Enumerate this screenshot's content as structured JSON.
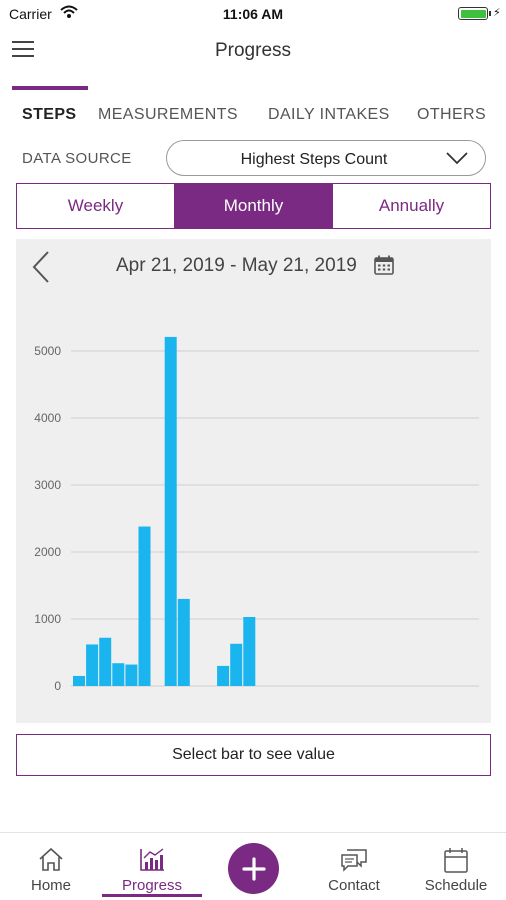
{
  "status_bar": {
    "carrier": "Carrier",
    "time": "11:06 AM"
  },
  "nav": {
    "title": "Progress"
  },
  "tabs": [
    {
      "label": "STEPS",
      "active": true
    },
    {
      "label": "MEASUREMENTS",
      "active": false
    },
    {
      "label": "DAILY INTAKES",
      "active": false
    },
    {
      "label": "OTHERS",
      "active": false
    }
  ],
  "data_source": {
    "label": "DATA SOURCE",
    "value": "Highest Steps Count"
  },
  "periods": [
    {
      "label": "Weekly",
      "active": false
    },
    {
      "label": "Monthly",
      "active": true
    },
    {
      "label": "Annually",
      "active": false
    }
  ],
  "chart_header": {
    "date_range": "Apr 21, 2019 - May 21, 2019"
  },
  "chart_data": {
    "type": "bar",
    "ylim": [
      0,
      5000
    ],
    "yticks": [
      0,
      1000,
      2000,
      3000,
      4000,
      5000
    ],
    "grid": true,
    "values": [
      150,
      620,
      720,
      340,
      320,
      2380,
      0,
      5210,
      1300,
      0,
      0,
      300,
      630,
      1030,
      0,
      0,
      0,
      0,
      0,
      0,
      0,
      0,
      0,
      0,
      0,
      0,
      0,
      0,
      0,
      0,
      0
    ],
    "bar_color": "#1ab4ef"
  },
  "value_display": {
    "text": "Select bar to see value"
  },
  "bottom_nav": {
    "home": "Home",
    "progress": "Progress",
    "contact": "Contact",
    "schedule": "Schedule"
  },
  "colors": {
    "accent": "#7a2a82",
    "bar": "#1ab4ef",
    "chart_bg": "#efefef"
  }
}
